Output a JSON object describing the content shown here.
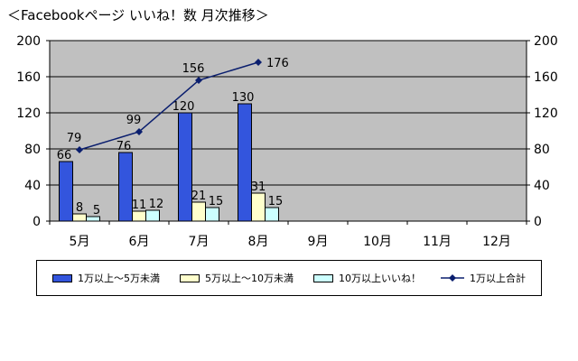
{
  "title": "＜Facebookページ いいね！数 月次推移＞",
  "chart_data": {
    "type": "bar",
    "categories": [
      "5月",
      "6月",
      "7月",
      "8月",
      "9月",
      "10月",
      "11月",
      "12月"
    ],
    "ylim": [
      0,
      200
    ],
    "y2lim": [
      0,
      200
    ],
    "yticks": [
      0,
      40,
      80,
      120,
      160,
      200
    ],
    "grid": true,
    "legend_position": "bottom",
    "series": [
      {
        "name": "1万以上～5万未満",
        "type": "bar",
        "color": "#3355dd",
        "values": [
          66,
          76,
          120,
          130,
          null,
          null,
          null,
          null
        ],
        "labels": [
          "66",
          "76",
          "120",
          "130"
        ]
      },
      {
        "name": "5万以上～10万未満",
        "type": "bar",
        "color": "#ffffcc",
        "values": [
          8,
          11,
          21,
          31,
          null,
          null,
          null,
          null
        ],
        "labels": [
          "8",
          "11",
          "21",
          "31"
        ]
      },
      {
        "name": "10万以上いいね！",
        "type": "bar",
        "color": "#ccffff",
        "values": [
          5,
          12,
          15,
          15,
          null,
          null,
          null,
          null
        ],
        "labels": [
          "5",
          "12",
          "15",
          "15"
        ]
      },
      {
        "name": "1万以上合計",
        "type": "line",
        "color": "#0a1e6e",
        "values": [
          79,
          99,
          156,
          176,
          null,
          null,
          null,
          null
        ],
        "labels": [
          "79",
          "99",
          "156",
          "176"
        ]
      }
    ],
    "plot_background": "#c0c0c0"
  }
}
